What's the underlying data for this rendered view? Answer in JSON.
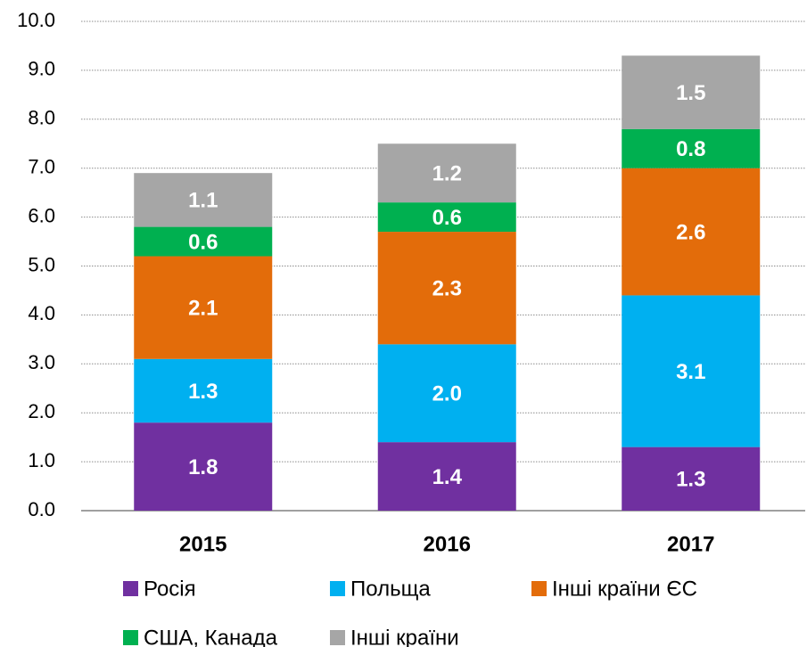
{
  "chart_data": {
    "type": "stacked_bar",
    "categories": [
      "2015",
      "2016",
      "2017"
    ],
    "series": [
      {
        "name": "Росія",
        "color": "#7030a0",
        "values": [
          1.8,
          1.4,
          1.3
        ],
        "value_labels": [
          "1.8",
          "1.4",
          "1.3"
        ]
      },
      {
        "name": "Польща",
        "color": "#00b0f0",
        "values": [
          1.3,
          2.0,
          3.1
        ],
        "value_labels": [
          "1.3",
          "2.0",
          "3.1"
        ]
      },
      {
        "name": "Інші країни ЄС",
        "color": "#e36c0a",
        "values": [
          2.1,
          2.3,
          2.6
        ],
        "value_labels": [
          "2.1",
          "2.3",
          "2.6"
        ]
      },
      {
        "name": "США, Канада",
        "color": "#00b050",
        "values": [
          0.6,
          0.6,
          0.8
        ],
        "value_labels": [
          "0.6",
          "0.6",
          "0.8"
        ]
      },
      {
        "name": "Інші країни",
        "color": "#a6a6a6",
        "values": [
          1.1,
          1.2,
          1.5
        ],
        "value_labels": [
          "1.1",
          "1.2",
          "1.5"
        ]
      }
    ],
    "ylim": [
      0,
      10
    ],
    "yticks": [
      {
        "value": 0,
        "label": "0.0"
      },
      {
        "value": 1,
        "label": "1.0"
      },
      {
        "value": 2,
        "label": "2.0"
      },
      {
        "value": 3,
        "label": "3.0"
      },
      {
        "value": 4,
        "label": "4.0"
      },
      {
        "value": 5,
        "label": "5.0"
      },
      {
        "value": 6,
        "label": "6.0"
      },
      {
        "value": 7,
        "label": "7.0"
      },
      {
        "value": 8,
        "label": "8.0"
      },
      {
        "value": 9,
        "label": "9.0"
      },
      {
        "value": 10,
        "label": "10.0"
      }
    ],
    "grid": true
  }
}
